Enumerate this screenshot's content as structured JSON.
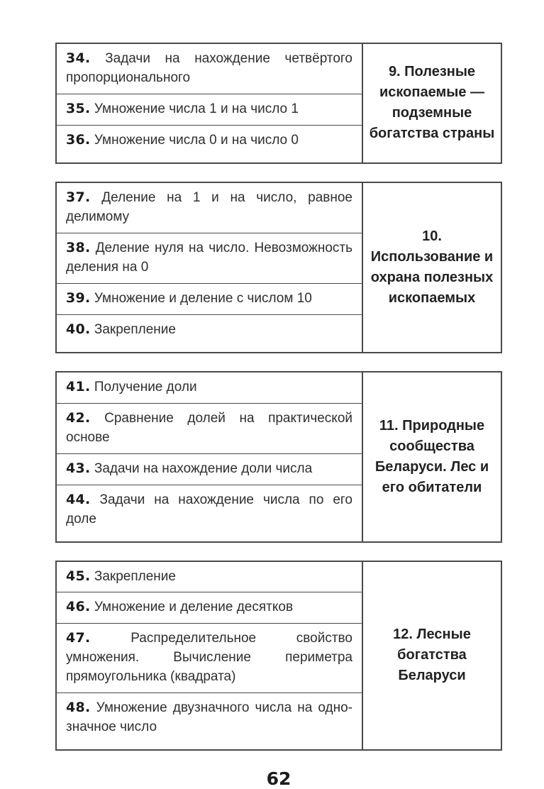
{
  "page": {
    "number": "62"
  },
  "colors": {
    "text": "#2f2f2f",
    "number": "#1c1c1c",
    "border": "#4a4a4a",
    "background": "#ffffff"
  },
  "blocks": [
    {
      "theme": "9. Полезные ископаемые — подземные богатства страны",
      "lessons": [
        {
          "num": "34.",
          "title": "Задачи на нахождение четвёртого пропор­ционального"
        },
        {
          "num": "35.",
          "title": "Умножение числа 1 и на число 1"
        },
        {
          "num": "36.",
          "title": "Умножение числа 0 и на число 0"
        }
      ]
    },
    {
      "theme": "10. Использование и охрана полезных ископаемых",
      "lessons": [
        {
          "num": "37.",
          "title": "Деление на 1 и на число, равное делимому"
        },
        {
          "num": "38.",
          "title": "Деление нуля на число. Невозможность де­ления на 0"
        },
        {
          "num": "39.",
          "title": "Умножение и деление с числом 10"
        },
        {
          "num": "40.",
          "title": "Закрепление"
        }
      ]
    },
    {
      "theme": "11. Природные сообщества Беларуси. Лес и его обитатели",
      "lessons": [
        {
          "num": "41.",
          "title": "Получение доли"
        },
        {
          "num": "42.",
          "title": "Сравнение долей на практической основе"
        },
        {
          "num": "43.",
          "title": "Задачи на нахождение доли числа"
        },
        {
          "num": "44.",
          "title": "Задачи на нахождение числа по его доле"
        }
      ]
    },
    {
      "theme": "12. Лесные богатства Беларуси",
      "lessons": [
        {
          "num": "45.",
          "title": "Закрепление"
        },
        {
          "num": "46.",
          "title": "Умножение и деление десятков"
        },
        {
          "num": "47.",
          "title": "Распределительное свойство умножения. Вычисление периметра прямоугольника (ква­драта)"
        },
        {
          "num": "48.",
          "title": "Умножение двузначного числа на одно­значное число"
        }
      ]
    }
  ]
}
